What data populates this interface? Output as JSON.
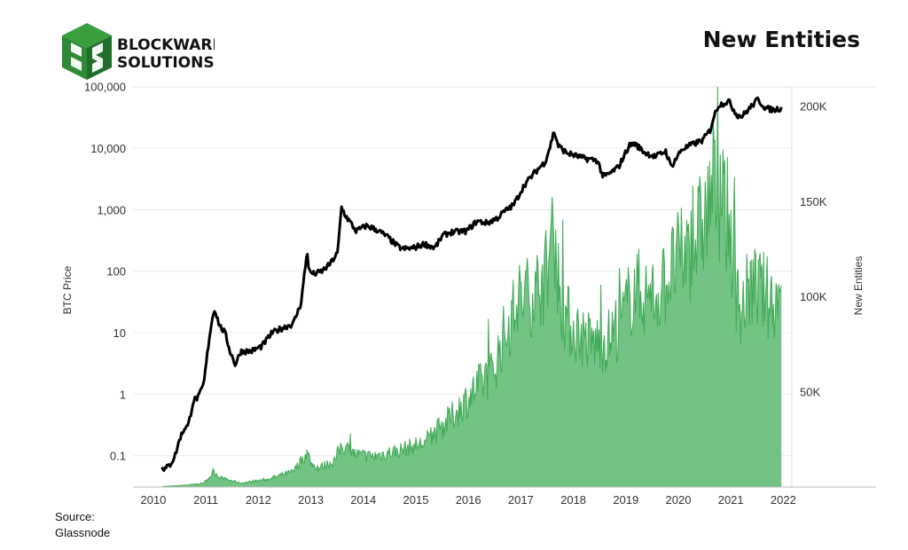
{
  "brand": {
    "line1": "BLOCKWARE",
    "line2": "SOLUTIONS",
    "logo_color": "#3a9e3f",
    "logo_dark": "#1f6e2a"
  },
  "header": {
    "title": "New Entities"
  },
  "source": {
    "line1": "Source:",
    "line2": "Glassnode"
  },
  "chart_data": {
    "type": "line",
    "title": "New Entities",
    "y_left_label": "BTC Price",
    "y_left_scale": "log",
    "y_left_ticks": [
      "0.1",
      "1",
      "10",
      "100",
      "1,000",
      "10,000",
      "100,000"
    ],
    "y_left_tick_values": [
      0.1,
      1,
      10,
      100,
      1000,
      10000,
      100000
    ],
    "y_right_label": "New Entities",
    "y_right_ticks": [
      "50K",
      "100K",
      "150K",
      "200K"
    ],
    "y_right_tick_values": [
      50000,
      100000,
      150000,
      200000
    ],
    "y_right_range": [
      0,
      210000
    ],
    "x_ticks": [
      "2010",
      "2011",
      "2012",
      "2013",
      "2014",
      "2015",
      "2016",
      "2017",
      "2018",
      "2019",
      "2020",
      "2021",
      "2022"
    ],
    "x_tick_values": [
      2010,
      2011,
      2012,
      2013,
      2014,
      2015,
      2016,
      2017,
      2018,
      2019,
      2020,
      2021,
      2022
    ],
    "x_range": [
      2009.95,
      2022.5
    ],
    "grid": true,
    "series": [
      {
        "name": "BTC Price",
        "color": "#000000",
        "axis": "left",
        "x": [
          2010.5,
          2010.55,
          2010.65,
          2010.75,
          2010.85,
          2010.95,
          2011.0,
          2011.1,
          2011.2,
          2011.3,
          2011.4,
          2011.45,
          2011.5,
          2011.6,
          2011.7,
          2011.8,
          2011.9,
          2012.0,
          2012.2,
          2012.4,
          2012.6,
          2012.8,
          2013.0,
          2013.15,
          2013.27,
          2013.3,
          2013.4,
          2013.55,
          2013.7,
          2013.85,
          2013.92,
          2014.0,
          2014.1,
          2014.2,
          2014.4,
          2014.6,
          2014.8,
          2015.0,
          2015.1,
          2015.3,
          2015.5,
          2015.7,
          2015.85,
          2016.0,
          2016.3,
          2016.5,
          2016.7,
          2016.9,
          2017.0,
          2017.2,
          2017.4,
          2017.6,
          2017.8,
          2017.9,
          2017.97,
          2018.05,
          2018.2,
          2018.5,
          2018.8,
          2018.9,
          2019.0,
          2019.2,
          2019.4,
          2019.5,
          2019.7,
          2019.9,
          2020.1,
          2020.2,
          2020.4,
          2020.6,
          2020.8,
          2020.95,
          2021.0,
          2021.1,
          2021.3,
          2021.45,
          2021.55,
          2021.7,
          2021.85,
          2022.0,
          2022.15,
          2022.3
        ],
        "y": [
          0.07,
          0.06,
          0.07,
          0.1,
          0.2,
          0.3,
          0.3,
          0.8,
          0.9,
          1.5,
          8,
          15,
          25,
          13,
          10,
          5,
          3,
          5,
          5,
          6,
          10,
          12,
          14,
          30,
          220,
          100,
          90,
          100,
          130,
          200,
          1100,
          800,
          600,
          450,
          550,
          470,
          360,
          250,
          230,
          240,
          280,
          240,
          380,
          430,
          450,
          650,
          610,
          740,
          900,
          1200,
          2500,
          4000,
          6000,
          11000,
          19000,
          11000,
          8500,
          7000,
          6300,
          3500,
          3700,
          5000,
          11000,
          12000,
          8500,
          7300,
          9000,
          5000,
          9500,
          11500,
          13500,
          20000,
          30000,
          50000,
          58000,
          35000,
          33000,
          45000,
          62000,
          45000,
          42000,
          45000
        ]
      },
      {
        "name": "New Entities",
        "color": "#3faa55",
        "axis": "right",
        "x": [
          2010.5,
          2011.0,
          2011.3,
          2011.5,
          2011.6,
          2012.0,
          2012.5,
          2013.0,
          2013.27,
          2013.35,
          2013.5,
          2013.8,
          2013.92,
          2014.2,
          2014.5,
          2015.0,
          2015.5,
          2016.0,
          2016.5,
          2016.8,
          2017.0,
          2017.3,
          2017.5,
          2017.8,
          2017.97,
          2018.1,
          2018.3,
          2018.7,
          2019.0,
          2019.3,
          2019.5,
          2019.8,
          2020.0,
          2020.3,
          2020.6,
          2020.9,
          2021.0,
          2021.1,
          2021.3,
          2021.5,
          2021.7,
          2021.9,
          2022.1,
          2022.3
        ],
        "y": [
          200,
          1000,
          2000,
          8000,
          5000,
          2000,
          4000,
          8000,
          18000,
          12000,
          10000,
          14000,
          22000,
          17000,
          16000,
          19000,
          23000,
          36000,
          52000,
          60000,
          78000,
          98000,
          100000,
          110000,
          135000,
          95000,
          84000,
          75000,
          77000,
          90000,
          105000,
          98000,
          103000,
          118000,
          125000,
          145000,
          160000,
          150000,
          140000,
          90000,
          105000,
          103000,
          98000,
          100000
        ]
      }
    ]
  }
}
